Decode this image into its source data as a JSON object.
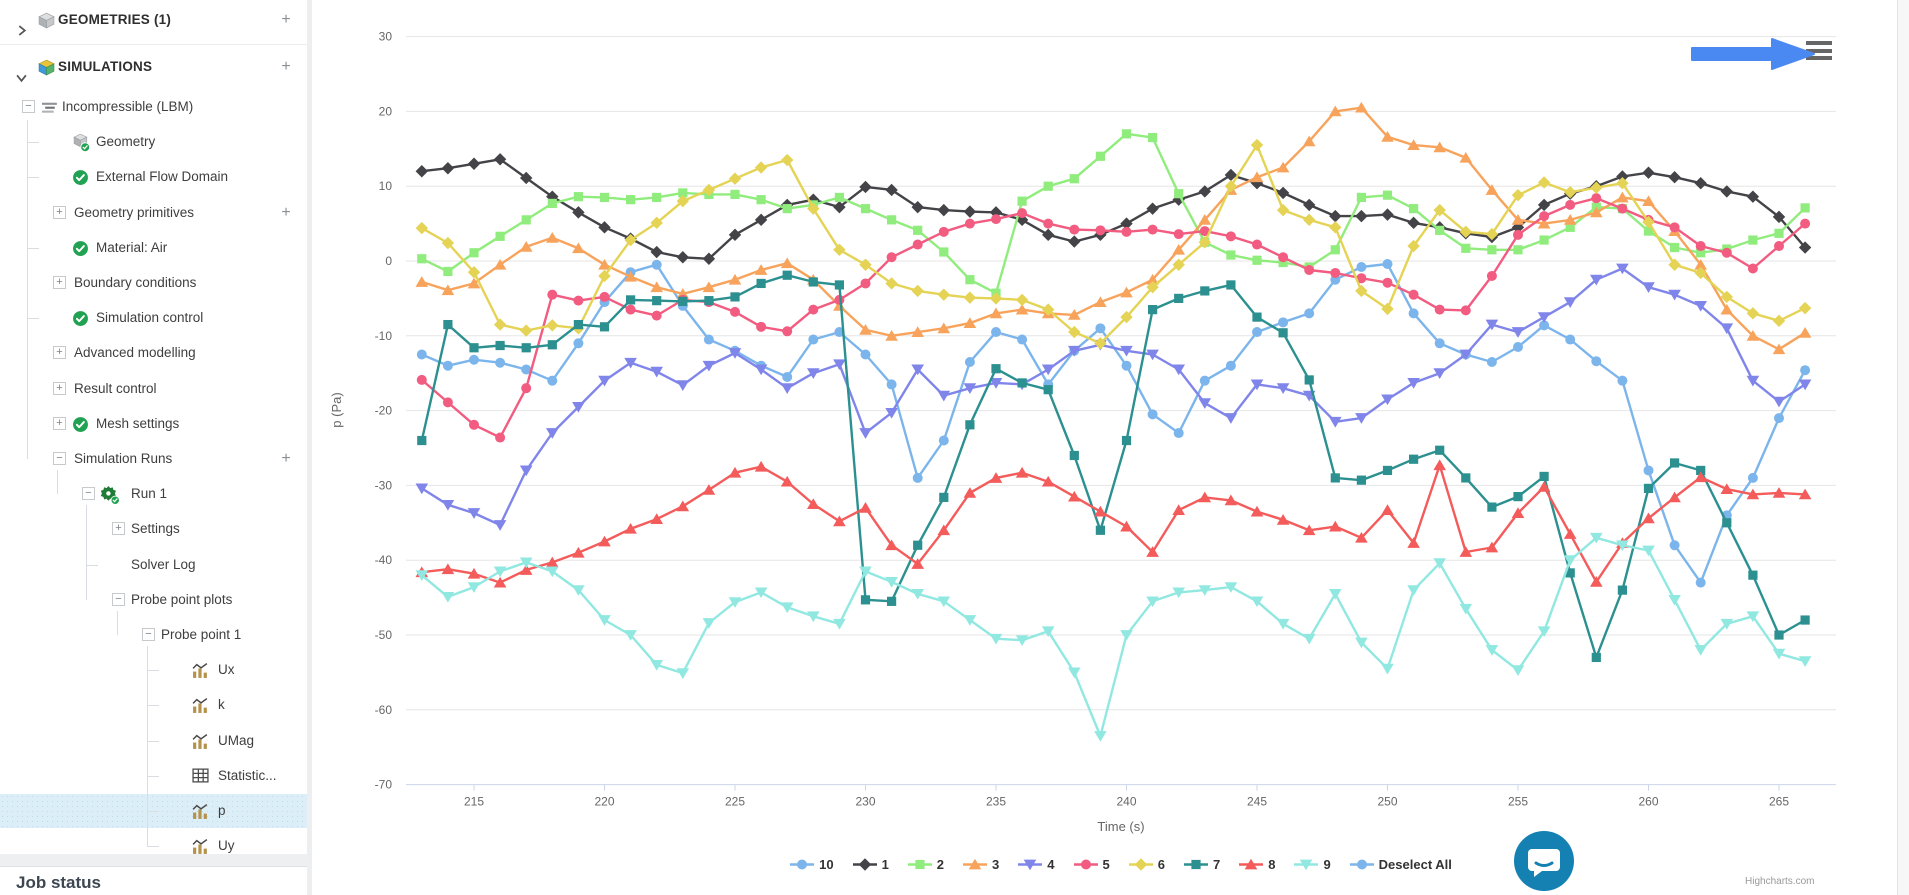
{
  "sidebar": {
    "rows": [
      {
        "label": "GEOMETRIES (1)",
        "kind": "hdr",
        "chevron": "right",
        "icon": "cube-grey",
        "plus": true
      },
      {
        "label": "SIMULATIONS",
        "kind": "hdr",
        "chevron": "down",
        "icon": "cube-color",
        "plus": true
      },
      {
        "label": "Incompressible (LBM)",
        "level": "l0",
        "box": "minus",
        "icon": "sim-lines"
      },
      {
        "label": "Geometry",
        "level": "l1i",
        "icon": "cube-check"
      },
      {
        "label": "External Flow Domain",
        "level": "l1i",
        "icon": "check"
      },
      {
        "label": "Geometry primitives",
        "level": "l1b",
        "box": "plus",
        "plus": true
      },
      {
        "label": "Material: Air",
        "level": "l1i",
        "icon": "check"
      },
      {
        "label": "Boundary conditions",
        "level": "l1b",
        "box": "plus"
      },
      {
        "label": "Simulation control",
        "level": "l1i",
        "icon": "check"
      },
      {
        "label": "Advanced modelling",
        "level": "l1b",
        "box": "plus"
      },
      {
        "label": "Result control",
        "level": "l1b",
        "box": "plus"
      },
      {
        "label": "Mesh settings",
        "level": "l1bc",
        "box": "plus",
        "icon": "check"
      },
      {
        "label": "Simulation Runs",
        "level": "l1b",
        "box": "minus",
        "plus": true
      },
      {
        "label": "Run 1",
        "level": "l2b",
        "box": "minus",
        "icon": "gear-check"
      },
      {
        "label": "Settings",
        "level": "l3b",
        "box": "plus"
      },
      {
        "label": "Solver Log",
        "level": "l3"
      },
      {
        "label": "Probe point plots",
        "level": "l3b",
        "box": "minus"
      },
      {
        "label": "Probe point 1",
        "level": "l4b",
        "box": "minus"
      },
      {
        "label": "Ux",
        "level": "l5",
        "icon": "chart"
      },
      {
        "label": "k",
        "level": "l5",
        "icon": "chart"
      },
      {
        "label": "UMag",
        "level": "l5",
        "icon": "chart"
      },
      {
        "label": "Statistic...",
        "level": "l5",
        "icon": "table"
      },
      {
        "label": "p",
        "level": "l5",
        "icon": "chart",
        "selected": true
      },
      {
        "label": "Uy",
        "level": "l5",
        "icon": "chart"
      }
    ],
    "job_status_label": "Job status"
  },
  "chart_data": {
    "type": "line",
    "title": "",
    "xlabel": "Time (s)",
    "ylabel": "p (Pa)",
    "xlim": [
      212.4,
      267
    ],
    "ylim": [
      -70,
      30
    ],
    "xticks": [
      215,
      220,
      225,
      230,
      235,
      240,
      245,
      250,
      255,
      260,
      265
    ],
    "yticks": [
      30,
      20,
      10,
      0,
      -10,
      -20,
      -30,
      -40,
      -50,
      -60,
      -70
    ],
    "grid": true,
    "legend_position": "bottom",
    "x": {
      "start": 213,
      "step": 1,
      "count": 54
    },
    "series": [
      {
        "name": "10",
        "color": "#7cb5ec",
        "symbol": "circle",
        "values": [
          -12.5,
          -14,
          -13.2,
          -13.6,
          -14.5,
          -16,
          -11,
          -5.5,
          -1.5,
          -0.5,
          -6,
          -10.5,
          -12,
          -14,
          -15.5,
          -10.5,
          -9.5,
          -12.5,
          -16.5,
          -29,
          -24,
          -13.5,
          -9.5,
          -10.5,
          -16.5,
          -12,
          -9,
          -14,
          -20.5,
          -23,
          -16,
          -14,
          -9.5,
          -8.2,
          -7,
          -2.5,
          -0.8,
          -0.4,
          -7,
          -11,
          -12.5,
          -13.5,
          -11.5,
          -8.6,
          -10.5,
          -13.4,
          -16,
          -28,
          -38,
          -43,
          -34,
          -29,
          -21,
          -14.6
        ]
      },
      {
        "name": "1",
        "color": "#434348",
        "symbol": "diamond",
        "values": [
          12,
          12.4,
          13,
          13.6,
          11.1,
          8.6,
          6.5,
          4.5,
          3,
          1.2,
          0.5,
          0.3,
          3.5,
          5.5,
          7.5,
          8.2,
          7.2,
          9.9,
          9.5,
          7.2,
          6.8,
          6.6,
          6.5,
          5.5,
          3.5,
          2.6,
          3.5,
          5,
          7,
          8.2,
          9.3,
          11.5,
          10.4,
          9.1,
          7.5,
          6,
          6,
          6.2,
          5.1,
          4.5,
          3.7,
          3.2,
          4.5,
          7.5,
          9,
          10,
          11.3,
          11.8,
          11.2,
          10.4,
          9.3,
          8.6,
          5.9,
          1.8
        ]
      },
      {
        "name": "2",
        "color": "#90ed7d",
        "symbol": "square",
        "values": [
          0.3,
          -1.4,
          1.1,
          3.3,
          5.5,
          7.7,
          8.6,
          8.5,
          8.2,
          8.5,
          9.1,
          8.9,
          8.9,
          8.2,
          7,
          7.5,
          8.5,
          7,
          5.5,
          4.1,
          1.2,
          -2.5,
          -4.3,
          8,
          10,
          11,
          14,
          17,
          16.5,
          9,
          2.5,
          0.8,
          0.1,
          -0.2,
          -0.8,
          1.5,
          8.5,
          8.8,
          7,
          4.1,
          1.7,
          1.5,
          1.5,
          2.8,
          4.5,
          7.2,
          7,
          4,
          1.8,
          1.1,
          1.6,
          2.8,
          3.7,
          7.1
        ]
      },
      {
        "name": "3",
        "color": "#f7a35c",
        "symbol": "triangle",
        "values": [
          -2.8,
          -3.9,
          -3,
          -0.5,
          1.9,
          3.1,
          1.7,
          -0.5,
          -2.1,
          -3.5,
          -4.4,
          -3.5,
          -2.5,
          -1.2,
          -0.3,
          -2.5,
          -6,
          -9.2,
          -10,
          -9.5,
          -9,
          -8.3,
          -7,
          -6.5,
          -7,
          -7.2,
          -5.5,
          -4.2,
          -2.5,
          1.5,
          5.5,
          9.5,
          11.2,
          12.5,
          16,
          20,
          20.5,
          16.6,
          15.5,
          15.2,
          13.8,
          9.5,
          5.5,
          5,
          5.5,
          6.5,
          8.5,
          8,
          4,
          -0.5,
          -6.5,
          -10,
          -11.8,
          -9.6
        ]
      },
      {
        "name": "4",
        "color": "#8085e9",
        "symbol": "triangle-down",
        "values": [
          -30.4,
          -32.6,
          -33.7,
          -35.3,
          -28,
          -23,
          -19.5,
          -16,
          -13.6,
          -14.8,
          -16.6,
          -14,
          -12.3,
          -14.5,
          -17,
          -15,
          -13.8,
          -23,
          -20.3,
          -14.5,
          -18,
          -17,
          -16.3,
          -16.5,
          -14.5,
          -12,
          -11.2,
          -12,
          -12.5,
          -14.5,
          -19,
          -21,
          -16.5,
          -17,
          -18,
          -21.5,
          -21,
          -18.5,
          -16.3,
          -15,
          -12.5,
          -8.5,
          -9.5,
          -7.5,
          -5.5,
          -2.5,
          -1,
          -3.5,
          -4.5,
          -6,
          -9,
          -16,
          -18.8,
          -16.5
        ]
      },
      {
        "name": "5",
        "color": "#f15c80",
        "symbol": "circle",
        "values": [
          -15.9,
          -18.9,
          -21.9,
          -23.6,
          -17,
          -4.5,
          -5.3,
          -4.8,
          -6.5,
          -7.3,
          -5.2,
          -5.5,
          -6.8,
          -8.8,
          -9.4,
          -6.5,
          -5.2,
          -3,
          0.5,
          2.2,
          3.9,
          5,
          5.6,
          6.4,
          5,
          4.2,
          4.1,
          3.9,
          4.2,
          3.6,
          4,
          3.3,
          2.2,
          0.5,
          -1.2,
          -1.6,
          -2.3,
          -2.9,
          -4.5,
          -6.5,
          -6.6,
          -2,
          3.5,
          6,
          7.5,
          8.4,
          7,
          5.5,
          4.5,
          2,
          1.1,
          -1,
          2,
          5
        ]
      },
      {
        "name": "6",
        "color": "#e4d354",
        "symbol": "diamond",
        "values": [
          4.4,
          2.4,
          -1.5,
          -8.5,
          -9.3,
          -8.6,
          -9,
          -2,
          2.8,
          5.1,
          8,
          9.5,
          11,
          12.5,
          13.5,
          7,
          1.5,
          -0.5,
          -3,
          -4,
          -4.5,
          -4.9,
          -5,
          -5.2,
          -6.5,
          -9.5,
          -11,
          -7.5,
          -3.5,
          -0.5,
          2.5,
          10,
          15.5,
          6.8,
          5.5,
          4.5,
          -4,
          -6.4,
          2,
          6.8,
          3.9,
          3.6,
          8.8,
          10.5,
          9.2,
          9.8,
          10.4,
          5.2,
          -0.5,
          -1.6,
          -4.8,
          -7,
          -8,
          -6.3
        ]
      },
      {
        "name": "7",
        "color": "#2b908f",
        "symbol": "square",
        "values": [
          -24,
          -8.5,
          -11.6,
          -11.3,
          -11.6,
          -11.2,
          -8.5,
          -8.8,
          -5.2,
          -5.3,
          -5.4,
          -5.3,
          -4.8,
          -3,
          -1.9,
          -2.8,
          -3.2,
          -45.3,
          -45.5,
          -38,
          -31.6,
          -21.9,
          -14.4,
          -16.3,
          -17.2,
          -26,
          -36,
          -24,
          -6.5,
          -5,
          -4,
          -3.2,
          -7.5,
          -9.6,
          -15.9,
          -29,
          -29.3,
          -28,
          -26.5,
          -25.3,
          -29,
          -32.9,
          -31.5,
          -28.8,
          -41.7,
          -53,
          -44,
          -30.4,
          -27,
          -28,
          -35,
          -42,
          -50,
          -48
        ]
      },
      {
        "name": "8",
        "color": "#f45b5b",
        "symbol": "triangle",
        "values": [
          -41.6,
          -41.2,
          -41.8,
          -43,
          -41.3,
          -40.3,
          -39,
          -37.5,
          -35.8,
          -34.5,
          -32.8,
          -30.6,
          -28.3,
          -27.5,
          -29.5,
          -32.5,
          -34.8,
          -33,
          -38,
          -40.5,
          -36,
          -31,
          -29,
          -28.3,
          -29.5,
          -31.5,
          -33.5,
          -35.5,
          -38.9,
          -33.3,
          -31.6,
          -32,
          -33.5,
          -34.6,
          -36,
          -35.5,
          -37,
          -33.3,
          -37.7,
          -27.3,
          -38.9,
          -38.3,
          -33.7,
          -30.2,
          -36.5,
          -42.9,
          -37.7,
          -34.4,
          -31.6,
          -28.9,
          -30.5,
          -31.2,
          -31,
          -31.2
        ]
      },
      {
        "name": "9",
        "color": "#91e8e1",
        "symbol": "triangle-down",
        "values": [
          -42,
          -44.9,
          -43.6,
          -41.5,
          -40.3,
          -41.5,
          -44,
          -48,
          -50,
          -54,
          -55.1,
          -48.4,
          -45.6,
          -44.3,
          -46.3,
          -47.5,
          -48.5,
          -41.5,
          -42.9,
          -44.5,
          -45.5,
          -48,
          -50.5,
          -50.7,
          -49.5,
          -55,
          -63.5,
          -50,
          -45.5,
          -44.3,
          -44,
          -43.6,
          -45.5,
          -48.5,
          -50.5,
          -44.5,
          -51,
          -54.5,
          -44,
          -40.4,
          -46.5,
          -52,
          -54.7,
          -49.5,
          -40,
          -37,
          -38,
          -38.7,
          -45.3,
          -52,
          -48.5,
          -47.5,
          -52.5,
          -53.5
        ]
      },
      {
        "name": "Deselect All",
        "color": "#7cb5ec",
        "symbol": "circle",
        "legend_only": true,
        "values": []
      }
    ]
  },
  "annotations": {
    "arrow_color": "#4a89f2",
    "burger_icon_color": "#666666"
  },
  "credits": "Highcharts.com",
  "colors": {
    "gridline": "#e6e6e6",
    "axis_line": "#ccd6eb",
    "tick_label": "#666666",
    "selected_row_bg": "#dceef7",
    "check_green": "#21a152",
    "intercom_blue": "#1581b3"
  }
}
